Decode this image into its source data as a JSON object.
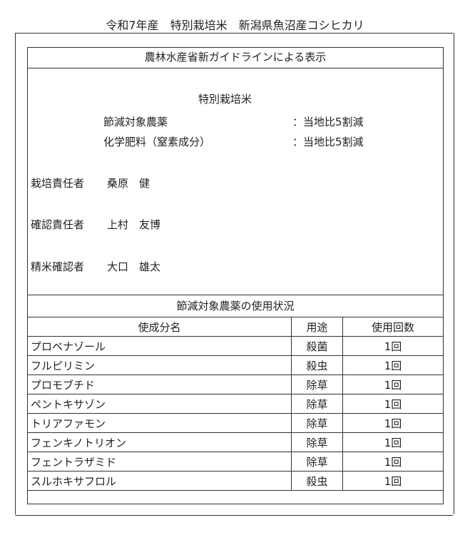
{
  "title": "令和7年産　特別栽培米　新潟県魚沼産コシヒカリ",
  "guideline_header": "農林水産省新ガイドラインによる表示",
  "label": {
    "type": "特別栽培米",
    "items": [
      {
        "name": "節減対象農薬",
        "value": "：当地比5割減"
      },
      {
        "name": "化学肥料（窒素成分）",
        "value": "：当地比5割減"
      }
    ]
  },
  "persons": [
    {
      "role": "栽培責任者",
      "name": "桑原　健"
    },
    {
      "role": "確認責任者",
      "name": "上村　友博"
    },
    {
      "role": "精米確認者",
      "name": "大口　雄太"
    }
  ],
  "usage_header": "節減対象農薬の使用状況",
  "table": {
    "columns": [
      "使成分名",
      "用途",
      "使用回数"
    ],
    "rows": [
      [
        "プロベナゾール",
        "殺菌",
        "1回"
      ],
      [
        "フルピリミン",
        "殺虫",
        "1回"
      ],
      [
        "プロモブチド",
        "除草",
        "1回"
      ],
      [
        "ペントキサゾン",
        "除草",
        "1回"
      ],
      [
        "トリアファモン",
        "除草",
        "1回"
      ],
      [
        "フェンキノトリオン",
        "除草",
        "1回"
      ],
      [
        "フェントラザミド",
        "除草",
        "1回"
      ],
      [
        "スルホキサフロル",
        "殺虫",
        "1回"
      ]
    ]
  }
}
